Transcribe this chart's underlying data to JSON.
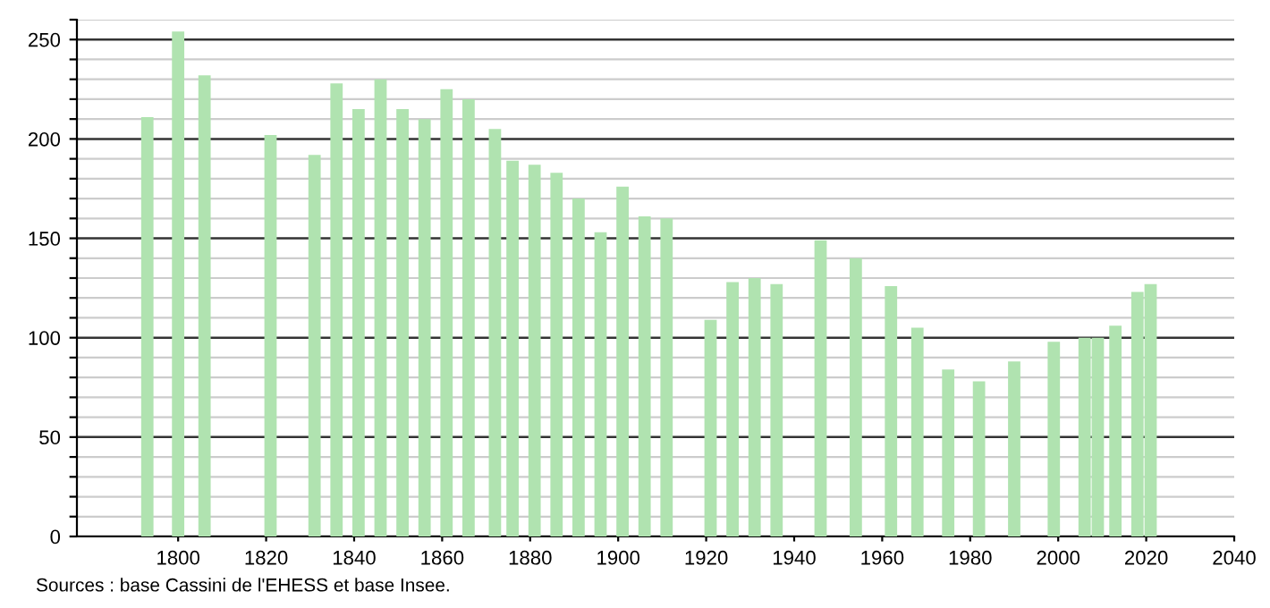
{
  "chart_data": {
    "type": "bar",
    "x": [
      1793,
      1800,
      1806,
      1821,
      1831,
      1836,
      1841,
      1846,
      1851,
      1856,
      1861,
      1866,
      1872,
      1876,
      1881,
      1886,
      1891,
      1896,
      1901,
      1906,
      1911,
      1921,
      1926,
      1931,
      1936,
      1946,
      1954,
      1962,
      1968,
      1975,
      1982,
      1990,
      1999,
      2006,
      2009,
      2013,
      2018,
      2021
    ],
    "values": [
      211,
      254,
      232,
      202,
      192,
      228,
      215,
      230,
      215,
      210,
      225,
      220,
      205,
      189,
      187,
      183,
      170,
      153,
      176,
      161,
      160,
      109,
      128,
      130,
      127,
      149,
      140,
      126,
      105,
      84,
      78,
      88,
      98,
      100,
      100,
      106,
      123,
      127
    ],
    "color": "#b0e3b0",
    "xlim": [
      1777,
      2040
    ],
    "xticks": [
      1800,
      1820,
      1840,
      1860,
      1880,
      1900,
      1920,
      1940,
      1960,
      1980,
      2000,
      2020,
      2040
    ],
    "ylim": [
      0,
      260
    ],
    "yticks": [
      0,
      {
        "value": 10,
        "label": null
      },
      {
        "value": 20,
        "label": null
      },
      {
        "value": 30,
        "label": null
      },
      {
        "value": 40,
        "label": null
      },
      50,
      {
        "value": 60,
        "label": null
      },
      {
        "value": 70,
        "label": null
      },
      {
        "value": 80,
        "label": null
      },
      {
        "value": 90,
        "label": null
      },
      100,
      {
        "value": 110,
        "label": null
      },
      {
        "value": 120,
        "label": null
      },
      {
        "value": 130,
        "label": null
      },
      {
        "value": 140,
        "label": null
      },
      150,
      {
        "value": 160,
        "label": null
      },
      {
        "value": 170,
        "label": null
      },
      {
        "value": 180,
        "label": null
      },
      {
        "value": 190,
        "label": null
      },
      200,
      {
        "value": 210,
        "label": null
      },
      {
        "value": 220,
        "label": null
      },
      {
        "value": 230,
        "label": null
      },
      {
        "value": 240,
        "label": null
      },
      250,
      {
        "value": 260,
        "label": null
      }
    ],
    "grid": "y",
    "annotations": [
      "Sources : base Cassini de l'EHESS et base Insee."
    ]
  }
}
